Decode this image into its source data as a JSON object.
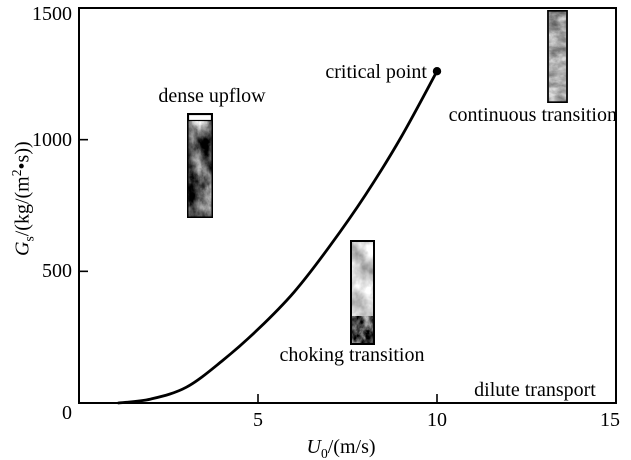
{
  "chart_data": {
    "type": "line",
    "title": "",
    "xlabel": "U0/(m/s)",
    "ylabel": "Gs/(kg/(m2•s))",
    "xlim": [
      0,
      15
    ],
    "ylim": [
      0,
      1500
    ],
    "grid": false,
    "x_tick_marks": [
      5,
      10
    ],
    "x_tick_labels": [
      {
        "v": 5
      },
      {
        "v": 10
      },
      {
        "v": 15,
        "dx": -6
      }
    ],
    "y_tick_marks": [
      500,
      1000
    ],
    "y_tick_labels": [
      {
        "v": 0,
        "dy": 10
      },
      {
        "v": 500
      },
      {
        "v": 1000
      },
      {
        "v": 1500,
        "dy": 6
      }
    ],
    "series": [
      {
        "name": "transport regime boundary curve",
        "x": [
          1.1,
          2,
          3,
          4,
          5,
          6,
          7,
          8,
          9,
          10
        ],
        "y": [
          0,
          15,
          60,
          160,
          280,
          420,
          595,
          790,
          1010,
          1260
        ]
      }
    ],
    "critical_point": {
      "x": 10,
      "y": 1260
    }
  },
  "labels": {
    "y_axis": {
      "var": "G",
      "sub": "s",
      "mid": "/(kg/(m",
      "sup": "2",
      "end": "•s))"
    },
    "x_axis": {
      "var": "U",
      "sub": "0",
      "end": "/(m/s)"
    }
  },
  "annotations": {
    "dense_upflow": "dense upflow",
    "critical_point": "critical point",
    "continuous_transition": "continuous transition",
    "choking_transition": "choking transition",
    "dilute_transport": "dilute transport"
  },
  "images": {
    "dense_upflow_image": "riser-column-photo-dense-upflow",
    "choking_image": "riser-column-photo-choking-transition",
    "continuous_image": "riser-column-photo-continuous-transition"
  },
  "colors": {
    "ink": "#000000",
    "background": "#ffffff"
  }
}
